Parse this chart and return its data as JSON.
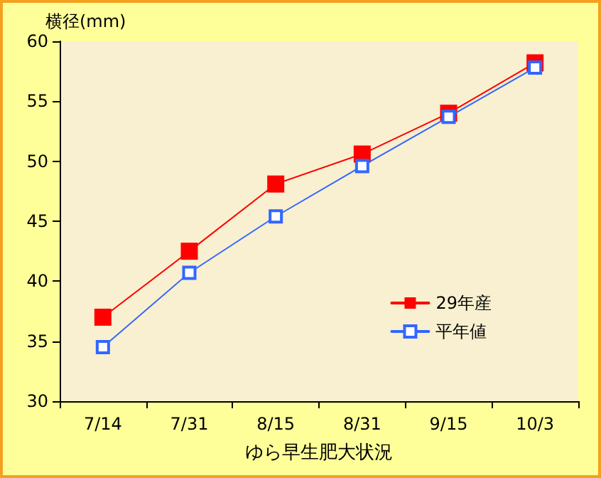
{
  "chart_data": {
    "type": "line",
    "xlabel": "ゆら早生肥大状況",
    "ylabel": "横径(mm)",
    "categories": [
      "7/14",
      "7/31",
      "8/15",
      "8/31",
      "9/15",
      "10/3"
    ],
    "series": [
      {
        "name": "29年産",
        "color": "#ff0000",
        "values": [
          37.0,
          42.5,
          48.1,
          50.6,
          54.0,
          58.2
        ]
      },
      {
        "name": "平年値",
        "color": "#3366ff",
        "values": [
          34.5,
          40.7,
          45.4,
          49.6,
          53.7,
          57.8
        ]
      }
    ],
    "ylim": [
      30,
      60
    ],
    "yticks": [
      30,
      35,
      40,
      45,
      50,
      55,
      60
    ],
    "grid": false,
    "legend": "right",
    "marker": "square",
    "line_style": "solid"
  }
}
